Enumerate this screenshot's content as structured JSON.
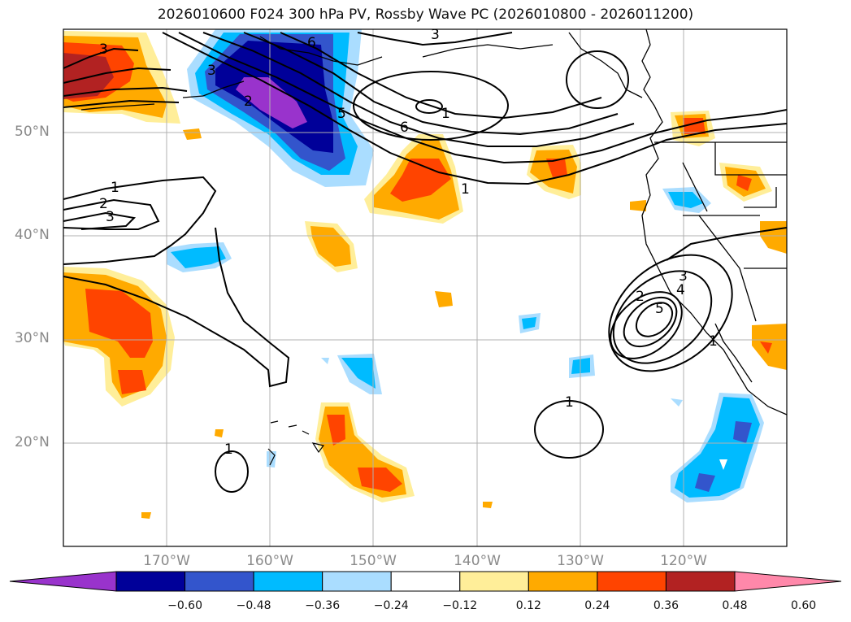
{
  "title": "2026010600 F024 300 hPa PV, Rossby Wave PC (2026010800 - 2026011200)",
  "map": {
    "extent": {
      "lon_min": -180,
      "lon_max": -110,
      "lat_min": 10,
      "lat_max": 60
    },
    "lat_ticks": [
      {
        "value": 50,
        "label": "50°N"
      },
      {
        "value": 40,
        "label": "40°N"
      },
      {
        "value": 30,
        "label": "30°N"
      },
      {
        "value": 20,
        "label": "20°N"
      }
    ],
    "lon_ticks": [
      {
        "value": -170,
        "label": "170°W"
      },
      {
        "value": -160,
        "label": "160°W"
      },
      {
        "value": -150,
        "label": "150°W"
      },
      {
        "value": -140,
        "label": "140°W"
      },
      {
        "value": -130,
        "label": "130°W"
      },
      {
        "value": -120,
        "label": "120°W"
      }
    ],
    "contour_labels": [
      "3",
      "3",
      "6",
      "3",
      "2",
      "5",
      "1",
      "6",
      "1",
      "1",
      "2",
      "3",
      "2",
      "3",
      "4",
      "5",
      "1",
      "1",
      "1"
    ],
    "colors": {
      "grid": "#b0b0b0",
      "contour": "#000000",
      "coast": "#000000"
    }
  },
  "colorbar": {
    "colors": [
      "#9933cc",
      "#000099",
      "#3355cc",
      "#00bbff",
      "#aaddff",
      "#ffffff",
      "#ffee99",
      "#ffaa00",
      "#ff4400",
      "#b22222",
      "#ff88aa"
    ],
    "ticks": [
      "−0.60",
      "−0.48",
      "−0.36",
      "−0.24",
      "−0.12",
      "0.12",
      "0.24",
      "0.36",
      "0.48",
      "0.60"
    ]
  }
}
